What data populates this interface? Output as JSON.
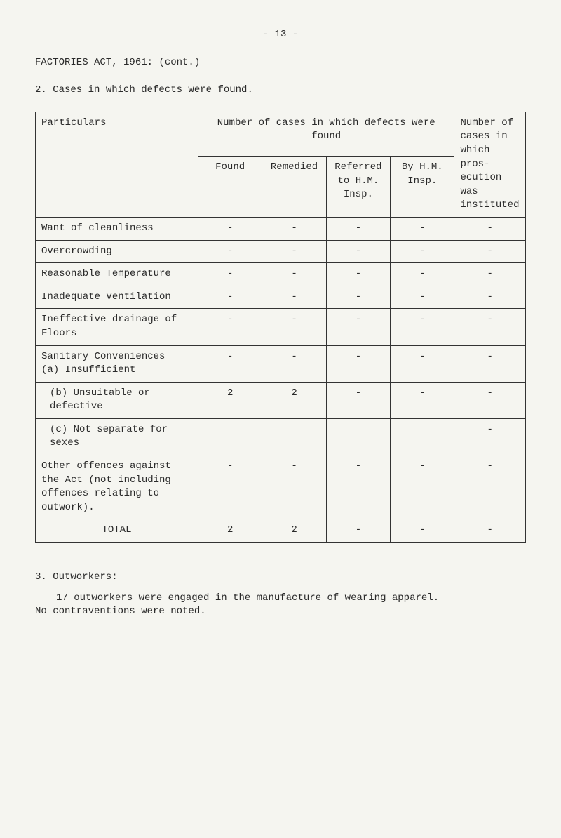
{
  "pageNumber": "- 13 -",
  "headerTitle": "FACTORIES ACT, 1961: (cont.)",
  "sectionIntro": "2. Cases in which defects were found.",
  "table": {
    "particularsHeader": "Particulars",
    "numberCasesHeader": "Number of cases in which defects were found",
    "foundHeader": "Found",
    "remediedHeader": "Remedied",
    "referredHeader": "Referred to H.M. Insp.",
    "byHeader": "By H.M. Insp.",
    "lastColHeader": "Number of cases in which pros-ecution was instituted",
    "rows": [
      {
        "label": "Want of cleanliness",
        "found": "-",
        "remedied": "-",
        "referred": "-",
        "by": "-",
        "num": "-"
      },
      {
        "label": "Overcrowding",
        "found": "-",
        "remedied": "-",
        "referred": "-",
        "by": "-",
        "num": "-"
      },
      {
        "label": "Reasonable Temperature",
        "found": "-",
        "remedied": "-",
        "referred": "-",
        "by": "-",
        "num": "-"
      },
      {
        "label": "Inadequate ventilation",
        "found": "-",
        "remedied": "-",
        "referred": "-",
        "by": "-",
        "num": "-"
      },
      {
        "label": "Ineffective drainage of Floors",
        "found": "-",
        "remedied": "-",
        "referred": "-",
        "by": "-",
        "num": "-"
      },
      {
        "label": "Sanitary Conveniences\n(a) Insufficient",
        "found": "-",
        "remedied": "-",
        "referred": "-",
        "by": "-",
        "num": "-"
      },
      {
        "label": "(b) Unsuitable or defective",
        "found": "2",
        "remedied": "2",
        "referred": "-",
        "by": "-",
        "num": "-"
      },
      {
        "label": "(c) Not separate for sexes",
        "found": "",
        "remedied": "",
        "referred": "",
        "by": "",
        "num": "-"
      },
      {
        "label": "Other offences against the Act (not including offences relating to outwork).",
        "found": "-",
        "remedied": "-",
        "referred": "-",
        "by": "-",
        "num": "-"
      }
    ],
    "totalLabel": "TOTAL",
    "total": {
      "found": "2",
      "remedied": "2",
      "referred": "-",
      "by": "-",
      "num": "-"
    }
  },
  "section3": {
    "title": "3. Outworkers:",
    "line1": "17 outworkers were engaged in the manufacture of wearing apparel.",
    "line2": "No contraventions were noted."
  }
}
